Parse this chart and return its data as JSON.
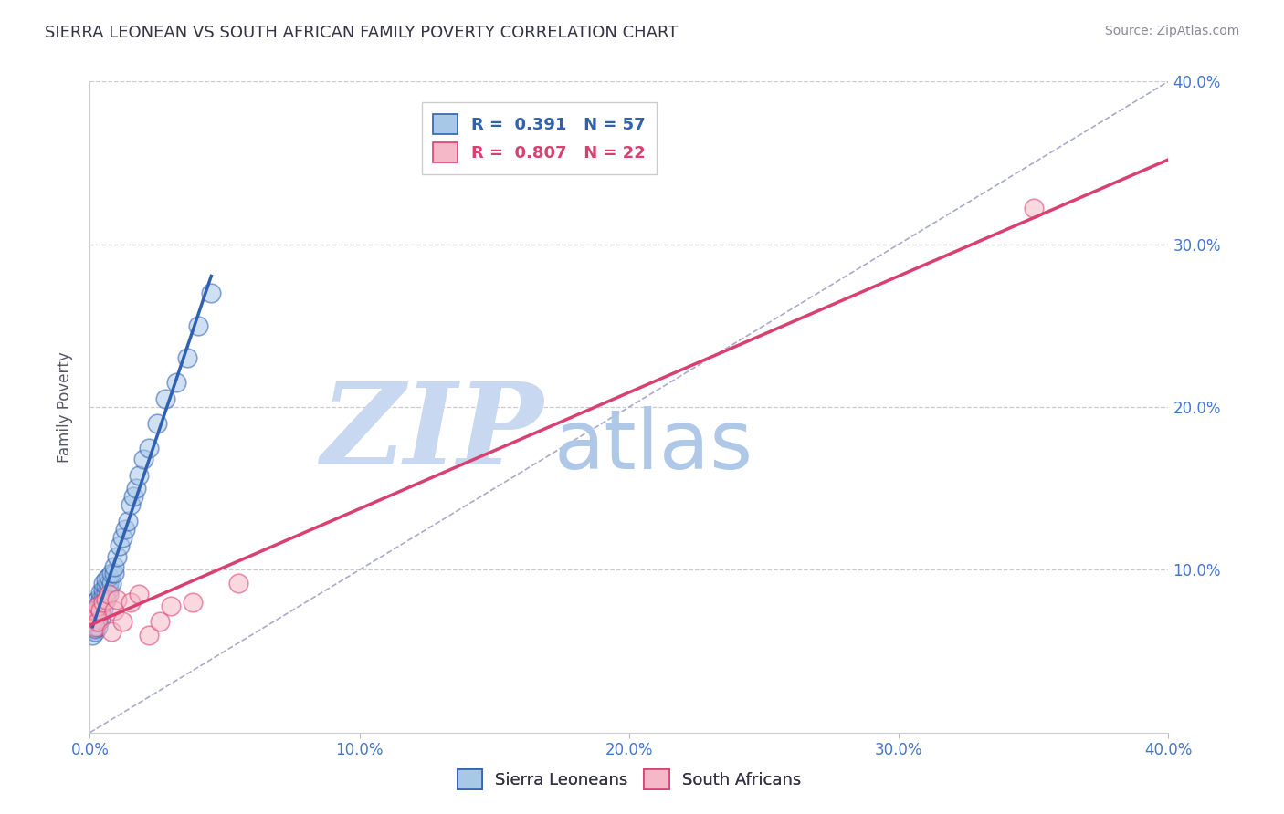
{
  "title": "SIERRA LEONEAN VS SOUTH AFRICAN FAMILY POVERTY CORRELATION CHART",
  "source": "Source: ZipAtlas.com",
  "ylabel": "Family Poverty",
  "xlim": [
    0.0,
    0.4
  ],
  "ylim": [
    0.0,
    0.4
  ],
  "xticks": [
    0.0,
    0.1,
    0.2,
    0.3,
    0.4
  ],
  "yticks": [
    0.1,
    0.2,
    0.3,
    0.4
  ],
  "xticklabels": [
    "0.0%",
    "10.0%",
    "20.0%",
    "30.0%",
    "40.0%"
  ],
  "yticklabels": [
    "10.0%",
    "20.0%",
    "30.0%",
    "40.0%"
  ],
  "legend_labels": [
    "Sierra Leoneans",
    "South Africans"
  ],
  "blue_R": "0.391",
  "blue_N": "57",
  "pink_R": "0.807",
  "pink_N": "22",
  "blue_color": "#a8c8e8",
  "pink_color": "#f5b8c8",
  "blue_line_color": "#3060b0",
  "pink_line_color": "#d84070",
  "grid_color": "#cccccc",
  "watermark_zip_color": "#c8d8f0",
  "watermark_atlas_color": "#b0c8e8",
  "sierra_x": [
    0.001,
    0.001,
    0.001,
    0.001,
    0.001,
    0.002,
    0.002,
    0.002,
    0.002,
    0.002,
    0.002,
    0.002,
    0.003,
    0.003,
    0.003,
    0.003,
    0.003,
    0.003,
    0.003,
    0.004,
    0.004,
    0.004,
    0.004,
    0.004,
    0.005,
    0.005,
    0.005,
    0.005,
    0.005,
    0.006,
    0.006,
    0.006,
    0.006,
    0.007,
    0.007,
    0.007,
    0.008,
    0.008,
    0.009,
    0.009,
    0.01,
    0.011,
    0.012,
    0.013,
    0.014,
    0.015,
    0.016,
    0.017,
    0.018,
    0.02,
    0.022,
    0.025,
    0.028,
    0.032,
    0.036,
    0.04,
    0.045
  ],
  "sierra_y": [
    0.06,
    0.065,
    0.068,
    0.07,
    0.072,
    0.062,
    0.064,
    0.068,
    0.07,
    0.074,
    0.076,
    0.08,
    0.065,
    0.068,
    0.07,
    0.072,
    0.075,
    0.078,
    0.082,
    0.07,
    0.075,
    0.078,
    0.082,
    0.086,
    0.076,
    0.08,
    0.084,
    0.088,
    0.092,
    0.082,
    0.086,
    0.09,
    0.094,
    0.088,
    0.092,
    0.096,
    0.092,
    0.098,
    0.098,
    0.102,
    0.108,
    0.115,
    0.12,
    0.125,
    0.13,
    0.14,
    0.145,
    0.15,
    0.158,
    0.168,
    0.175,
    0.19,
    0.205,
    0.215,
    0.23,
    0.25,
    0.27
  ],
  "south_x": [
    0.001,
    0.001,
    0.002,
    0.002,
    0.003,
    0.003,
    0.004,
    0.005,
    0.006,
    0.007,
    0.008,
    0.009,
    0.01,
    0.012,
    0.015,
    0.018,
    0.022,
    0.026,
    0.03,
    0.038,
    0.055,
    0.35
  ],
  "south_y": [
    0.068,
    0.072,
    0.065,
    0.075,
    0.068,
    0.078,
    0.075,
    0.08,
    0.082,
    0.085,
    0.062,
    0.075,
    0.082,
    0.068,
    0.08,
    0.085,
    0.06,
    0.068,
    0.078,
    0.08,
    0.092,
    0.322
  ]
}
